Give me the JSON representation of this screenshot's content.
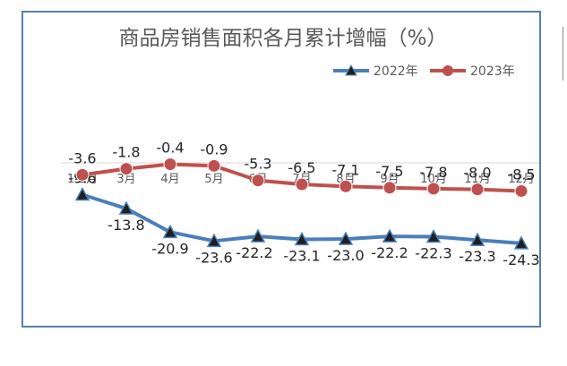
{
  "chart_data": {
    "type": "line",
    "title": "商品房销售面积各月累计增幅（%）",
    "categories": [
      "1-2月",
      "3月",
      "4月",
      "5月",
      "6月",
      "7月",
      "8月",
      "9月",
      "10月",
      "11月",
      "12月"
    ],
    "series": [
      {
        "name": "2022年",
        "color": "#4a7ebb",
        "marker": "triangle",
        "values": [
          -9.6,
          -13.8,
          -20.9,
          -23.6,
          -22.2,
          -23.1,
          -23.0,
          -22.2,
          -22.3,
          -23.3,
          -24.3
        ],
        "value_labels": [
          "-9.6",
          "-13.8",
          "-20.9",
          "-23.6",
          "-22.2",
          "-23.1",
          "-23.0",
          "-22.2",
          "-22.3",
          "-23.3",
          "-24.3"
        ]
      },
      {
        "name": "2023年",
        "color": "#c0504d",
        "marker": "circle",
        "values": [
          -3.6,
          -1.8,
          -0.4,
          -0.9,
          -5.3,
          -6.5,
          -7.1,
          -7.5,
          -7.8,
          -8.0,
          -8.5
        ],
        "value_labels": [
          "-3.6",
          "-1.8",
          "-0.4",
          "-0.9",
          "-5.3",
          "-6.5",
          "-7.1",
          "-7.5",
          "-7.8",
          "-8.0",
          "-8.5"
        ]
      }
    ],
    "ylim": [
      -30,
      5
    ],
    "grid": false,
    "legend_position": "top-right"
  }
}
